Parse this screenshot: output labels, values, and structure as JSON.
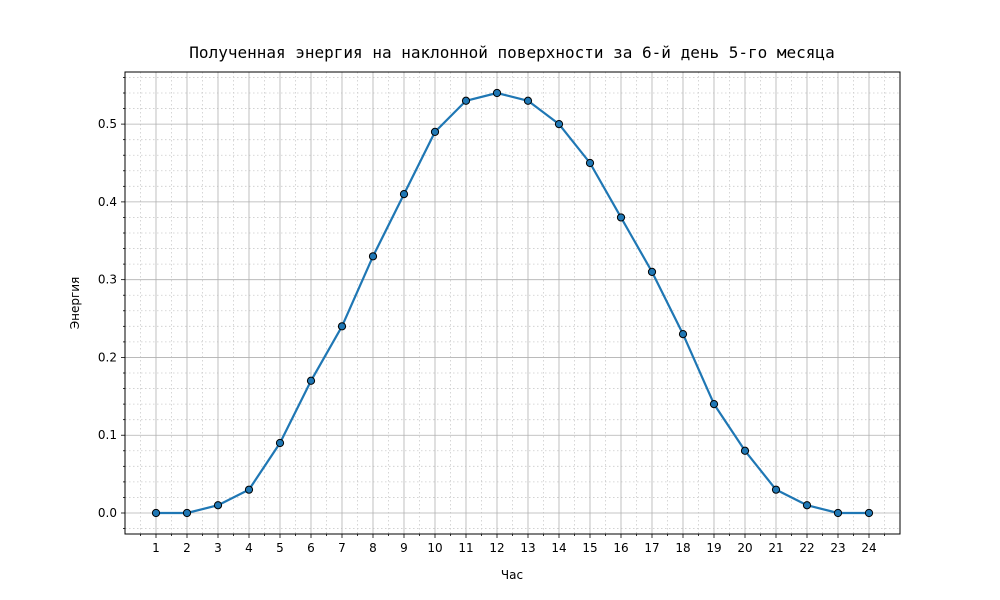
{
  "chart_data": {
    "type": "line",
    "title": "Полученная энергия на наклонной поверхности за 6-й день 5-го месяца",
    "xlabel": "Час",
    "ylabel": "Энергия",
    "x": [
      1,
      2,
      3,
      4,
      5,
      6,
      7,
      8,
      9,
      10,
      11,
      12,
      13,
      14,
      15,
      16,
      17,
      18,
      19,
      20,
      21,
      22,
      23,
      24
    ],
    "x_tick_labels": [
      "1",
      "2",
      "3",
      "4",
      "5",
      "6",
      "7",
      "8",
      "9",
      "10",
      "11",
      "12",
      "13",
      "14",
      "15",
      "16",
      "17",
      "18",
      "19",
      "20",
      "21",
      "22",
      "23",
      "24"
    ],
    "series": [
      {
        "values": [
          0.0,
          0.0,
          0.01,
          0.03,
          0.09,
          0.17,
          0.24,
          0.33,
          0.41,
          0.49,
          0.53,
          0.54,
          0.53,
          0.5,
          0.45,
          0.38,
          0.31,
          0.23,
          0.14,
          0.08,
          0.03,
          0.01,
          0.0,
          0.0
        ],
        "color": "#1f77b4",
        "marker": "circle",
        "marker_edge_color": "#000000"
      }
    ],
    "y_ticks": [
      0.0,
      0.1,
      0.2,
      0.3,
      0.4,
      0.5
    ],
    "y_tick_labels": [
      "0.0",
      "0.1",
      "0.2",
      "0.3",
      "0.4",
      "0.5"
    ],
    "xlim": [
      0.0,
      25.0
    ],
    "ylim": [
      -0.027,
      0.567
    ],
    "grid": true,
    "minor_grid": true,
    "legend": "none"
  }
}
